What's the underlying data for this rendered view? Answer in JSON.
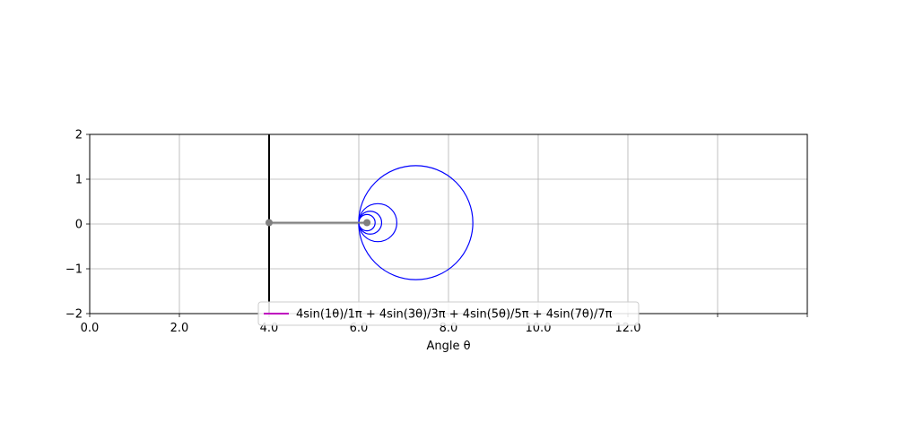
{
  "chart_data": {
    "type": "line",
    "title": "",
    "xlabel": "Angle θ",
    "ylabel": "",
    "xlim": [
      0,
      16
    ],
    "ylim": [
      -2,
      2
    ],
    "x_ticks": [
      0,
      2,
      4,
      6,
      8,
      10,
      12,
      14,
      16
    ],
    "x_tick_labels": [
      "0.0",
      "2.0",
      "4.0",
      "6.0",
      "8.0",
      "10.0",
      "12.0",
      "",
      ""
    ],
    "y_ticks": [
      -2,
      -1,
      0,
      1,
      2
    ],
    "y_tick_labels": [
      "−2",
      "−1",
      "0",
      "1",
      "2"
    ],
    "grid": true,
    "legend": {
      "placement": "lower-center",
      "entries": [
        {
          "label": "4sin(1θ)/1π + 4sin(3θ)/3π + 4sin(5θ)/5π + 4sin(7θ)/7π",
          "color": "#bf00bf"
        }
      ]
    },
    "circles": [
      {
        "name": "harmonic-1",
        "cx": 7.27,
        "cy": 0.03,
        "r": 1.273,
        "color": "#0000ff"
      },
      {
        "name": "harmonic-3",
        "cx": 6.424,
        "cy": 0.03,
        "r": 0.424,
        "color": "#0000ff"
      },
      {
        "name": "harmonic-5",
        "cx": 6.254,
        "cy": 0.03,
        "r": 0.255,
        "color": "#0000ff"
      },
      {
        "name": "harmonic-7",
        "cx": 6.182,
        "cy": 0.03,
        "r": 0.182,
        "color": "#0000ff"
      }
    ],
    "vertical_line": {
      "x": 4.0,
      "color": "#000000"
    },
    "connector": {
      "x1": 4.0,
      "y1": 0.03,
      "x2": 6.182,
      "y2": 0.03,
      "color": "#808080"
    },
    "markers": [
      {
        "x": 4.0,
        "y": 0.03,
        "color": "#808080"
      },
      {
        "x": 6.182,
        "y": 0.03,
        "color": "#808080"
      }
    ]
  }
}
